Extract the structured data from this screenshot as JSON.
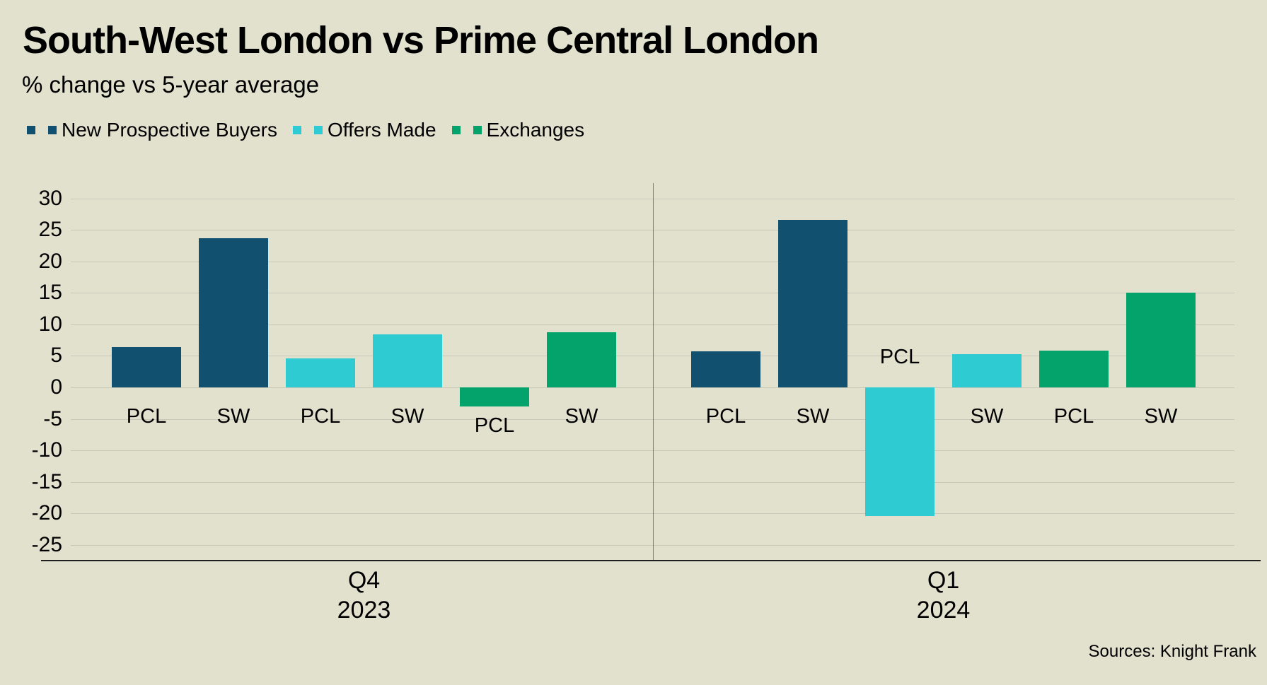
{
  "source": "Sources: Knight Frank",
  "colors": {
    "background": "#e1e1ce",
    "navy": "#12506f",
    "cyan": "#2fcbd2",
    "green": "#04a36c",
    "gridline": "#c8c8ba",
    "divider": "#7f7f78",
    "axis_line": "#1f1f1d",
    "text": "#000000"
  },
  "chart_data": {
    "type": "bar",
    "title": "South-West London vs Prime Central London",
    "subtitle": "% change vs 5-year average",
    "xlabel": "",
    "ylabel": "% change vs 5-year average",
    "ylim": [
      -25,
      30
    ],
    "y_ticks": [
      30,
      25,
      20,
      15,
      10,
      5,
      0,
      -5,
      -10,
      -15,
      -20,
      -25
    ],
    "grid": true,
    "legend_position": "top-left",
    "series": [
      {
        "name": "New Prospective Buyers",
        "color": "#12506f"
      },
      {
        "name": "Offers Made",
        "color": "#2fcbd2"
      },
      {
        "name": "Exchanges",
        "color": "#04a36c"
      }
    ],
    "region_categories": [
      "PCL",
      "SW"
    ],
    "groups": [
      {
        "quarter": "Q4",
        "year": "2023",
        "bars": [
          {
            "series": "New Prospective Buyers",
            "region": "PCL",
            "value": 6.4
          },
          {
            "series": "New Prospective Buyers",
            "region": "SW",
            "value": 23.7
          },
          {
            "series": "Offers Made",
            "region": "PCL",
            "value": 4.6
          },
          {
            "series": "Offers Made",
            "region": "SW",
            "value": 8.4
          },
          {
            "series": "Exchanges",
            "region": "PCL",
            "value": -3.0
          },
          {
            "series": "Exchanges",
            "region": "SW",
            "value": 8.8
          }
        ]
      },
      {
        "quarter": "Q1",
        "year": "2024",
        "bars": [
          {
            "series": "New Prospective Buyers",
            "region": "PCL",
            "value": 5.7
          },
          {
            "series": "New Prospective Buyers",
            "region": "SW",
            "value": 26.6
          },
          {
            "series": "Offers Made",
            "region": "PCL",
            "value": -20.4
          },
          {
            "series": "Offers Made",
            "region": "SW",
            "value": 5.3
          },
          {
            "series": "Exchanges",
            "region": "PCL",
            "value": 5.8
          },
          {
            "series": "Exchanges",
            "region": "SW",
            "value": 15.0
          }
        ]
      }
    ]
  }
}
